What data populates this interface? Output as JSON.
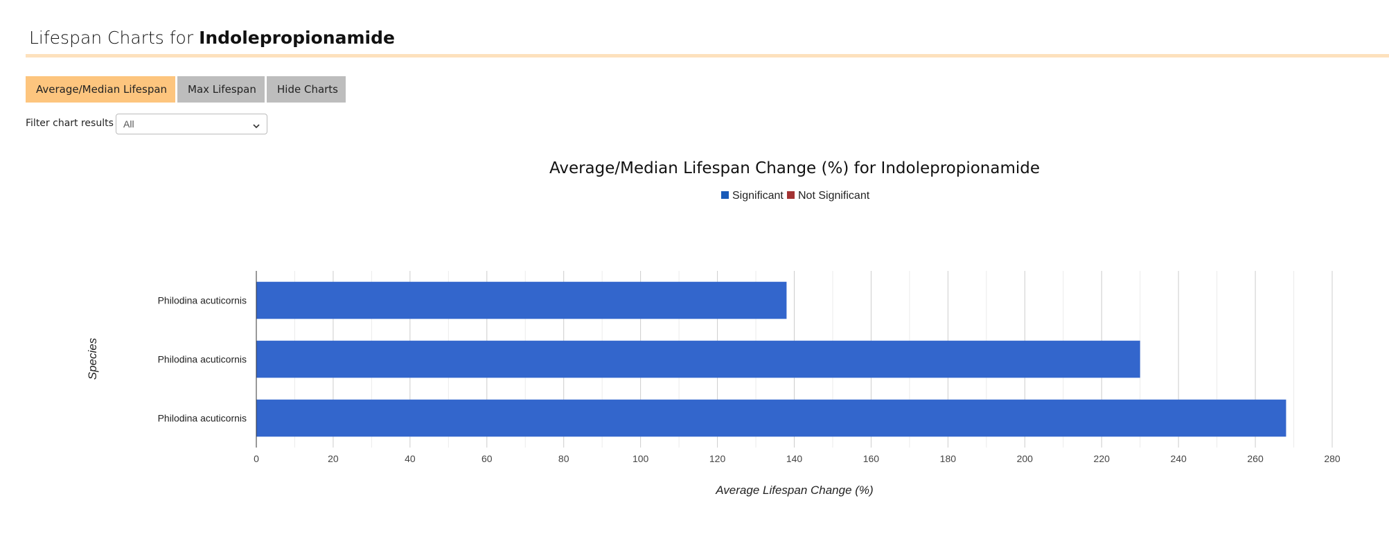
{
  "page": {
    "heading_prefix": "Lifespan Charts for ",
    "heading_compound": "Indolepropionamide"
  },
  "tabs": [
    {
      "label": "Average/Median Lifespan",
      "active": true
    },
    {
      "label": "Max Lifespan",
      "active": false
    },
    {
      "label": "Hide Charts",
      "active": false
    }
  ],
  "filter": {
    "label": "Filter chart results",
    "selected": "All"
  },
  "colors": {
    "accent": "#fdc57e",
    "significant": "#3366cc",
    "significant_legend": "#1a5bb8",
    "not_significant": "#a33333"
  },
  "chart_data": {
    "type": "bar",
    "orientation": "horizontal",
    "title": "Average/Median Lifespan Change (%) for Indolepropionamide",
    "xlabel": "Average Lifespan Change (%)",
    "ylabel": "Species",
    "categories": [
      "Philodina acuticornis",
      "Philodina acuticornis",
      "Philodina acuticornis"
    ],
    "values": [
      138,
      230,
      268
    ],
    "significance": [
      "Significant",
      "Significant",
      "Significant"
    ],
    "legend": [
      "Significant",
      "Not Significant"
    ],
    "legend_position": "top",
    "xlim": [
      0,
      280
    ],
    "x_ticks": [
      0,
      20,
      40,
      60,
      80,
      100,
      120,
      140,
      160,
      180,
      200,
      220,
      240,
      260,
      280
    ],
    "grid": true
  }
}
